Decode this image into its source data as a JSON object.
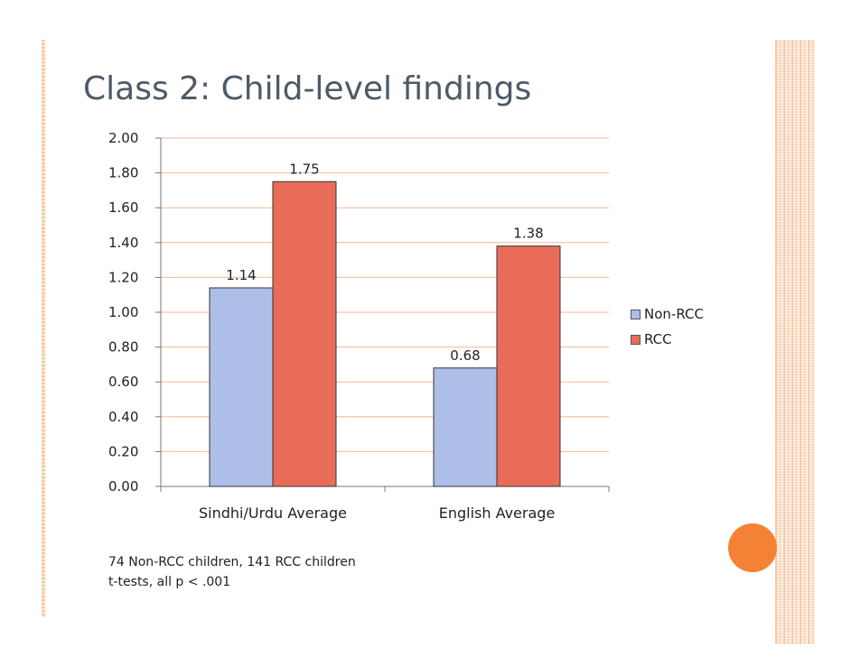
{
  "title": "Class 2: Child-level findings",
  "notes": [
    "74 Non-RCC children, 141 RCC children",
    "t-tests, all p < .001"
  ],
  "colors": {
    "non_rcc": "#adbfe8",
    "rcc": "#e86c58",
    "grid": "#f0b89c",
    "accent": "#f58234"
  },
  "chart_data": {
    "type": "bar",
    "categories": [
      "Sindhi/Urdu Average",
      "English Average"
    ],
    "series": [
      {
        "name": "Non-RCC",
        "values": [
          1.14,
          0.68
        ]
      },
      {
        "name": "RCC",
        "values": [
          1.75,
          1.38
        ]
      }
    ],
    "data_labels": [
      [
        "1.14",
        "0.68"
      ],
      [
        "1.75",
        "1.38"
      ]
    ],
    "ylim": [
      0,
      2.0
    ],
    "yticks": [
      "0.00",
      "0.20",
      "0.40",
      "0.60",
      "0.80",
      "1.00",
      "1.20",
      "1.40",
      "1.60",
      "1.80",
      "2.00"
    ],
    "grid": true,
    "legend_position": "right"
  }
}
